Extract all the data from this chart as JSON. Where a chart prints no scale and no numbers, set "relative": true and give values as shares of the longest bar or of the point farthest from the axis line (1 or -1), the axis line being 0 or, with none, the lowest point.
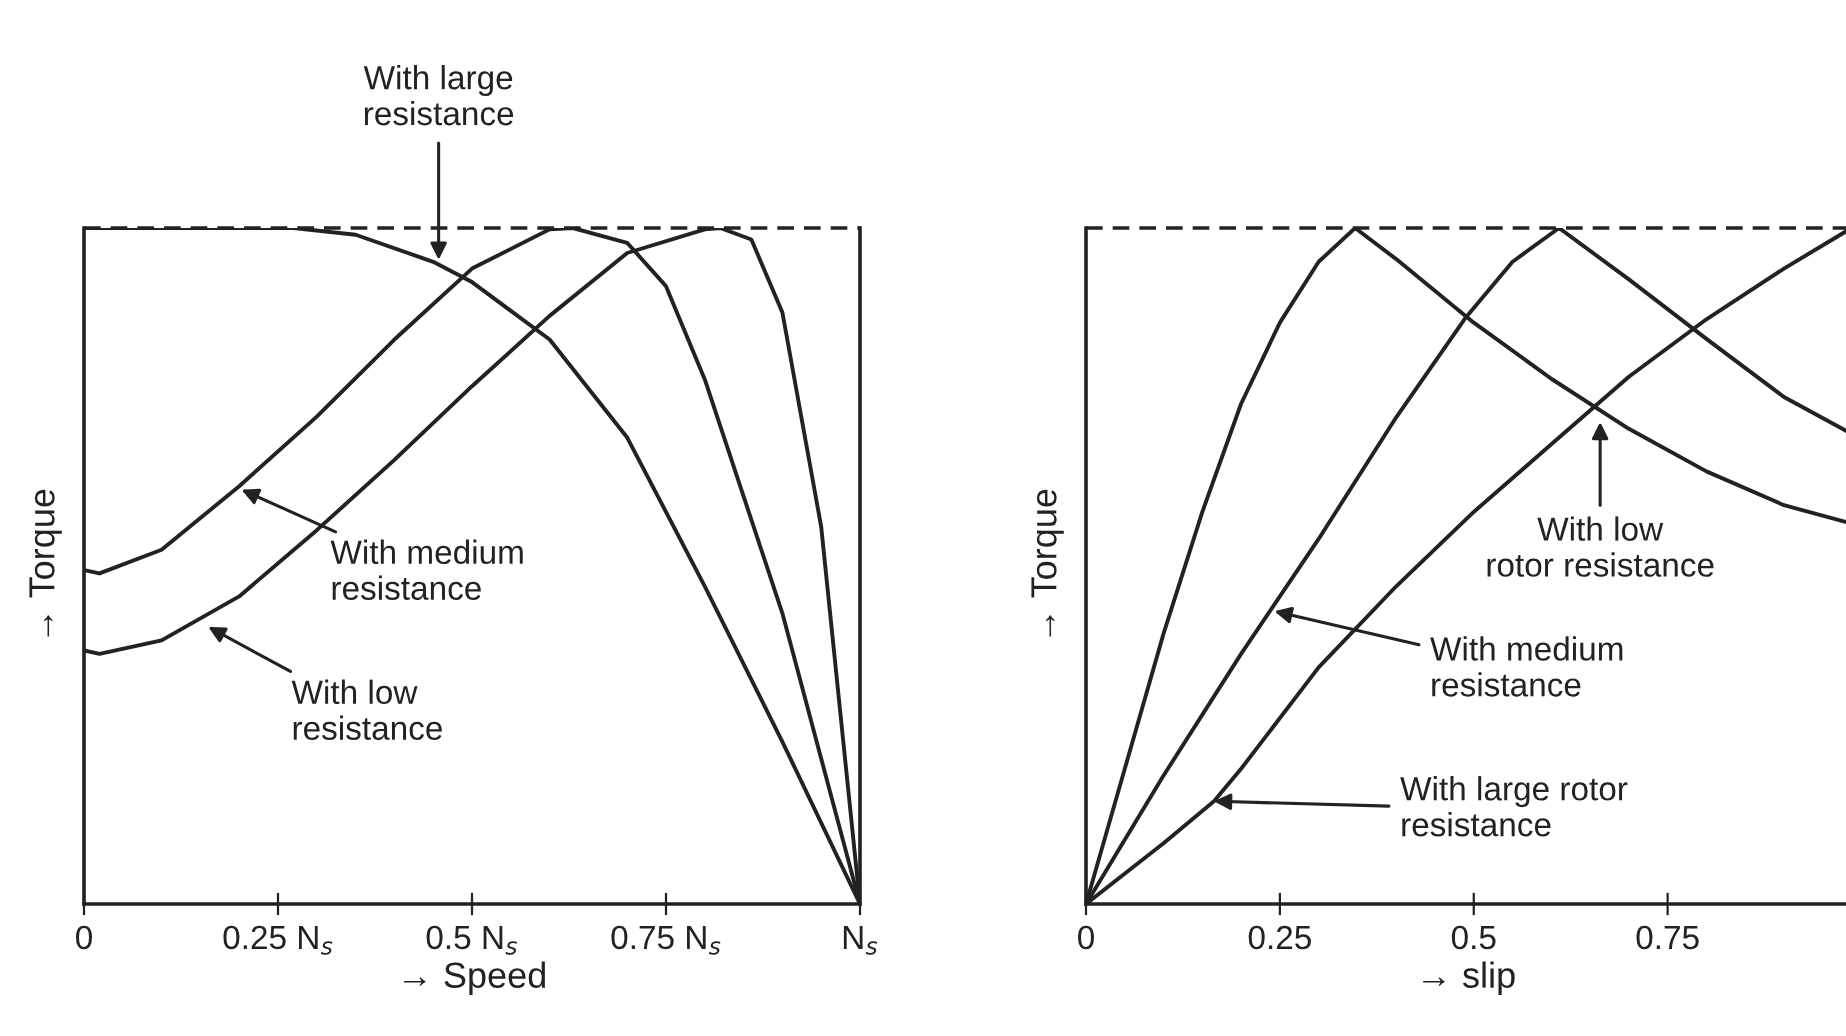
{
  "chart_data": [
    {
      "type": "line",
      "relative": true,
      "xlabel": "→ Speed",
      "ylabel": "→ Torque",
      "xlim": [
        0,
        1
      ],
      "xticks": [
        0,
        {
          "value": 0.25,
          "label": "0.25 N$_{s}$"
        },
        {
          "value": 0.5,
          "label": "0.5 N$_{s}$"
        },
        {
          "value": 0.75,
          "label": "0.75 N$_{s}$"
        },
        {
          "value": 1,
          "label": "N$_{s}$"
        }
      ],
      "tick_labels": "x",
      "grid": false,
      "legend": false,
      "marker": "none",
      "line_style": "solid",
      "ref_lines": [
        {
          "axis": "y",
          "value": 1,
          "label": null,
          "line_style": "dashed",
          "color": "#222222"
        }
      ],
      "series": [
        {
          "color": "#222222",
          "x": [
            0,
            0.1,
            0.2,
            0.27,
            0.35,
            0.45,
            0.5,
            0.6,
            0.7,
            0.8,
            0.9,
            1.0
          ],
          "values": [
            1,
            1,
            1,
            1,
            0.99,
            0.95,
            0.92,
            0.835,
            0.69,
            0.47,
            0.24,
            0
          ]
        },
        {
          "color": "#222222",
          "x": [
            0,
            0.02,
            0.1,
            0.2,
            0.3,
            0.4,
            0.5,
            0.6,
            0.63,
            0.7,
            0.75,
            0.8,
            0.9,
            1.0
          ],
          "values": [
            0.494,
            0.489,
            0.524,
            0.618,
            0.721,
            0.835,
            0.94,
            0.998,
            1,
            0.978,
            0.914,
            0.776,
            0.43,
            0
          ]
        },
        {
          "color": "#222222",
          "x": [
            0,
            0.02,
            0.1,
            0.2,
            0.3,
            0.4,
            0.5,
            0.6,
            0.7,
            0.8,
            0.82,
            0.86,
            0.9,
            0.95,
            1.0
          ],
          "values": [
            0.375,
            0.37,
            0.39,
            0.455,
            0.553,
            0.657,
            0.766,
            0.87,
            0.963,
            0.998,
            1,
            0.983,
            0.875,
            0.558,
            0
          ]
        }
      ],
      "annotations": [
        {
          "text": "With large\nresistance",
          "x": 0.457,
          "y": 0.953
        },
        {
          "text": "With medium\nresistance",
          "x": 0.203,
          "y": 0.613
        },
        {
          "text": "With low\nresistance",
          "x": 0.16,
          "y": 0.41
        }
      ]
    },
    {
      "type": "line",
      "relative": true,
      "xlabel": "→ slip",
      "ylabel": "→ Torque",
      "xlim": [
        0,
        0.98
      ],
      "xticks": [
        0,
        0.25,
        0.5,
        0.75
      ],
      "tick_labels": "x",
      "grid": false,
      "legend": false,
      "marker": "none",
      "line_style": "solid",
      "ref_lines": [
        {
          "axis": "y",
          "value": 1,
          "label": null,
          "line_style": "dashed",
          "color": "#222222"
        }
      ],
      "series": [
        {
          "color": "#222222",
          "x": [
            0,
            0.05,
            0.1,
            0.15,
            0.2,
            0.25,
            0.3,
            0.347,
            0.4,
            0.5,
            0.6,
            0.7,
            0.8,
            0.9,
            0.98
          ],
          "values": [
            0,
            0.2,
            0.4,
            0.58,
            0.74,
            0.86,
            0.95,
            1,
            0.954,
            0.86,
            0.777,
            0.703,
            0.64,
            0.59,
            0.565
          ]
        },
        {
          "color": "#222222",
          "x": [
            0,
            0.1,
            0.2,
            0.3,
            0.4,
            0.49,
            0.55,
            0.61,
            0.7,
            0.8,
            0.9,
            0.98
          ],
          "values": [
            0,
            0.19,
            0.37,
            0.54,
            0.72,
            0.868,
            0.95,
            1,
            0.924,
            0.836,
            0.75,
            0.7
          ]
        },
        {
          "color": "#222222",
          "x": [
            0,
            0.1,
            0.165,
            0.2,
            0.3,
            0.4,
            0.5,
            0.6,
            0.7,
            0.8,
            0.9,
            0.98
          ],
          "values": [
            0,
            0.09,
            0.152,
            0.2,
            0.35,
            0.47,
            0.58,
            0.68,
            0.78,
            0.865,
            0.94,
            0.995
          ]
        }
      ],
      "annotations": [
        {
          "text": "With low\nrotor resistance",
          "x": 0.663,
          "y": 0.713
        },
        {
          "text": "With medium\nresistance",
          "x": 0.243,
          "y": 0.433
        },
        {
          "text": "With large rotor\nresistance",
          "x": 0.165,
          "y": 0.152
        }
      ]
    }
  ]
}
